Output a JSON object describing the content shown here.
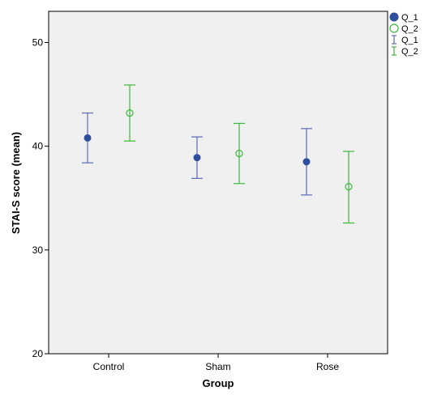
{
  "chart_data": {
    "type": "scatter",
    "subtype": "error-bar",
    "xlabel": "Group",
    "ylabel": "STAI-S score (mean)",
    "categories": [
      "Control",
      "Sham",
      "Rose"
    ],
    "ylim": [
      20,
      53
    ],
    "yticks": [
      20,
      30,
      40,
      50
    ],
    "grid": false,
    "legend_position": "right",
    "series": [
      {
        "name": "Q_1",
        "marker": "filled-circle",
        "color": "#2f4f9e",
        "errorbar_color": "#5b6ab8",
        "values": [
          40.8,
          38.9,
          38.5
        ],
        "lower": [
          38.4,
          36.9,
          35.3
        ],
        "upper": [
          43.2,
          40.9,
          41.7
        ]
      },
      {
        "name": "Q_2",
        "marker": "open-circle",
        "color": "#3cb83c",
        "errorbar_color": "#3cb83c",
        "values": [
          43.2,
          39.3,
          36.1
        ],
        "lower": [
          40.5,
          36.4,
          32.6
        ],
        "upper": [
          45.9,
          42.2,
          39.5
        ]
      }
    ],
    "legend": [
      {
        "label": "Q_1",
        "kind": "marker",
        "series": 0
      },
      {
        "label": "Q_2",
        "kind": "marker",
        "series": 1
      },
      {
        "label": "Q_1",
        "kind": "errorbar",
        "series": 0
      },
      {
        "label": "Q_2",
        "kind": "errorbar",
        "series": 1
      }
    ],
    "colors": {
      "plot_background": "#f0f0f0",
      "axis": "#000000"
    }
  }
}
